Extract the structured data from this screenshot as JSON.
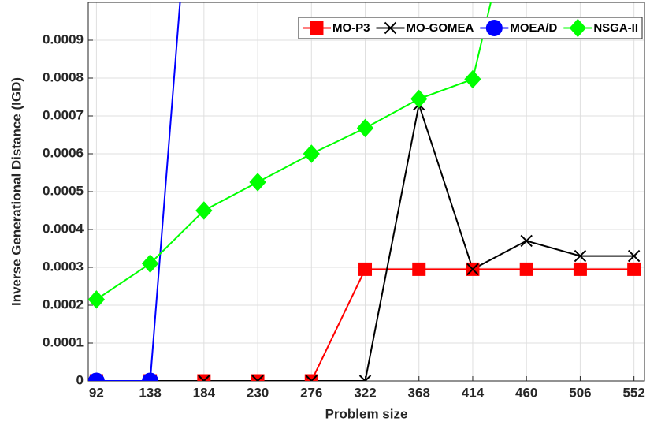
{
  "chart_data": {
    "type": "line",
    "xlabel": "Problem size",
    "ylabel": "Inverse Generational Distance (IGD)",
    "x": [
      92,
      138,
      184,
      230,
      276,
      322,
      368,
      414,
      460,
      506,
      552
    ],
    "xlim": [
      85,
      561
    ],
    "xticks": [
      92,
      138,
      184,
      230,
      276,
      322,
      368,
      414,
      460,
      506,
      552
    ],
    "ylim": [
      0,
      0.001
    ],
    "yticks": [
      0,
      0.0001,
      0.0002,
      0.0003,
      0.0004,
      0.0005,
      0.0006,
      0.0007,
      0.0008,
      0.0009
    ],
    "grid": true,
    "legend": "top-right",
    "series": [
      {
        "name": "MO-P3",
        "color": "#ff0000",
        "marker": "square",
        "values": [
          0,
          0,
          0,
          0,
          0,
          0.000295,
          0.000295,
          0.000295,
          0.000295,
          0.000295,
          0.000295
        ]
      },
      {
        "name": "MO-GOMEA",
        "color": "#000000",
        "marker": "x",
        "values": [
          0,
          0,
          0,
          0,
          0,
          0,
          0.00073,
          0.000295,
          0.00037,
          0.00033,
          0.00033
        ]
      },
      {
        "name": "MOEA/D",
        "color": "#0000ff",
        "marker": "circle",
        "values": [
          0,
          0,
          0.0018,
          null,
          null,
          null,
          null,
          null,
          null,
          null,
          null
        ]
      },
      {
        "name": "NSGA-II",
        "color": "#00ff00",
        "marker": "diamond",
        "values": [
          0.000215,
          0.00031,
          0.00045,
          0.000525,
          0.0006,
          0.000668,
          0.000745,
          0.000797,
          0.0014,
          null,
          null
        ]
      }
    ]
  }
}
